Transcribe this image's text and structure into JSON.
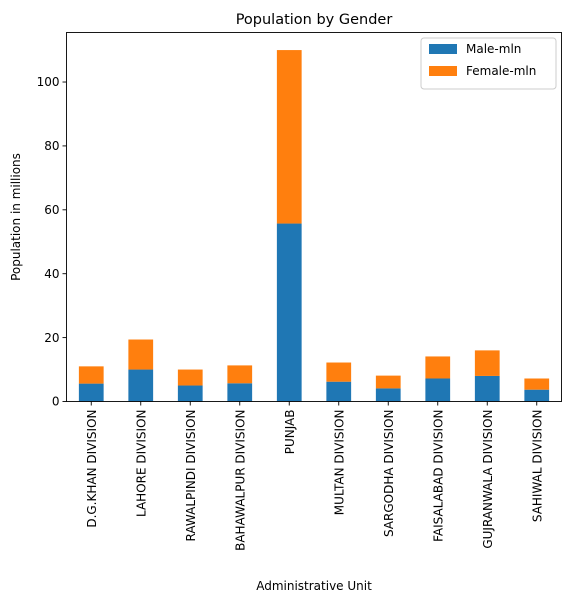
{
  "chart_data": {
    "type": "bar",
    "stacked": true,
    "title": "Population by Gender",
    "xlabel": "Administrative Unit",
    "ylabel": "Population in millions",
    "categories": [
      "D.G.KHAN DIVISION",
      "LAHORE DIVISION",
      "RAWALPINDI DIVISION",
      "BAHAWALPUR DIVISION",
      "PUNJAB",
      "MULTAN DIVISION",
      "SARGODHA DIVISION",
      "FAISALABAD DIVISION",
      "GUJRANWALA DIVISION",
      "SAHIWAL DIVISION"
    ],
    "series": [
      {
        "name": "Male-mln",
        "color": "#1f77b4",
        "values": [
          5.6,
          10.0,
          5.0,
          5.7,
          55.7,
          6.2,
          4.1,
          7.2,
          8.0,
          3.7
        ]
      },
      {
        "name": "Female-mln",
        "color": "#ff7f0e",
        "values": [
          5.4,
          9.4,
          5.0,
          5.6,
          54.3,
          6.0,
          4.0,
          6.9,
          8.0,
          3.5
        ]
      }
    ],
    "ylim": [
      0,
      115.5
    ],
    "yticks": [
      0,
      20,
      40,
      60,
      80,
      100
    ],
    "legend": "top-right",
    "grid": false
  }
}
